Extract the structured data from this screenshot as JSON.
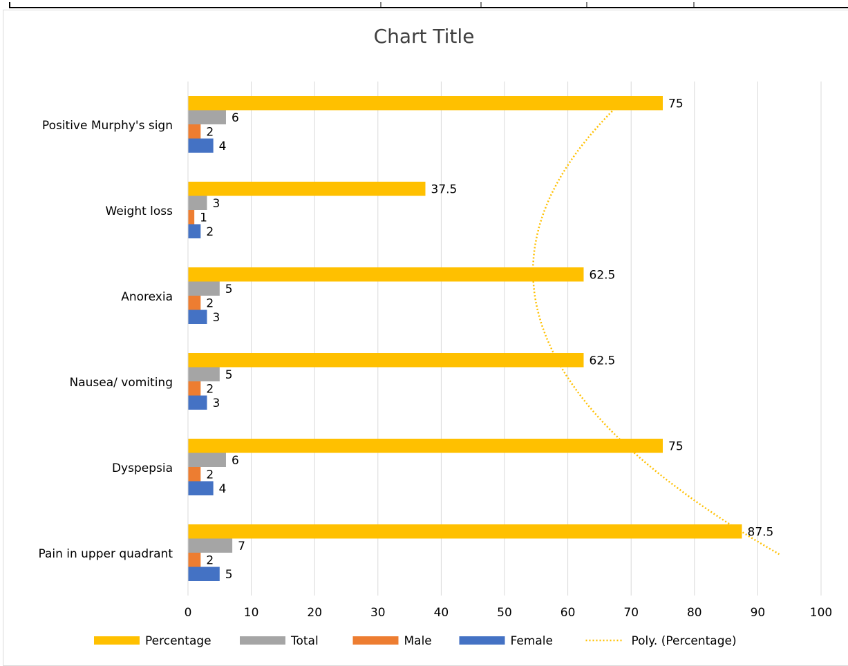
{
  "chart_data": {
    "type": "bar",
    "orientation": "horizontal",
    "title": "Chart Title",
    "categories": [
      "Positive Murphy's sign",
      "Weight loss",
      "Anorexia",
      "Nausea/ vomiting",
      "Dyspepsia",
      "Pain in upper quadrant"
    ],
    "series": [
      {
        "name": "Percentage",
        "values": [
          75,
          37.5,
          62.5,
          62.5,
          75,
          87.5
        ],
        "color": "#FFC000"
      },
      {
        "name": "Total",
        "values": [
          6,
          3,
          5,
          5,
          6,
          7
        ],
        "color": "#A5A5A5"
      },
      {
        "name": "Male",
        "values": [
          2,
          1,
          2,
          2,
          2,
          2
        ],
        "color": "#ED7D31"
      },
      {
        "name": "Female",
        "values": [
          4,
          2,
          3,
          3,
          4,
          5
        ],
        "color": "#4472C4"
      }
    ],
    "trendline": {
      "name": "Poly. (Percentage)",
      "type": "polynomial",
      "series": "Percentage",
      "color": "#FFC000",
      "style": "dotted"
    },
    "xlim": [
      0,
      100
    ],
    "xticks": [
      0,
      10,
      20,
      30,
      40,
      50,
      60,
      70,
      80,
      90,
      100
    ],
    "grid": "vertical",
    "legend": "bottom",
    "data_labels": true
  }
}
